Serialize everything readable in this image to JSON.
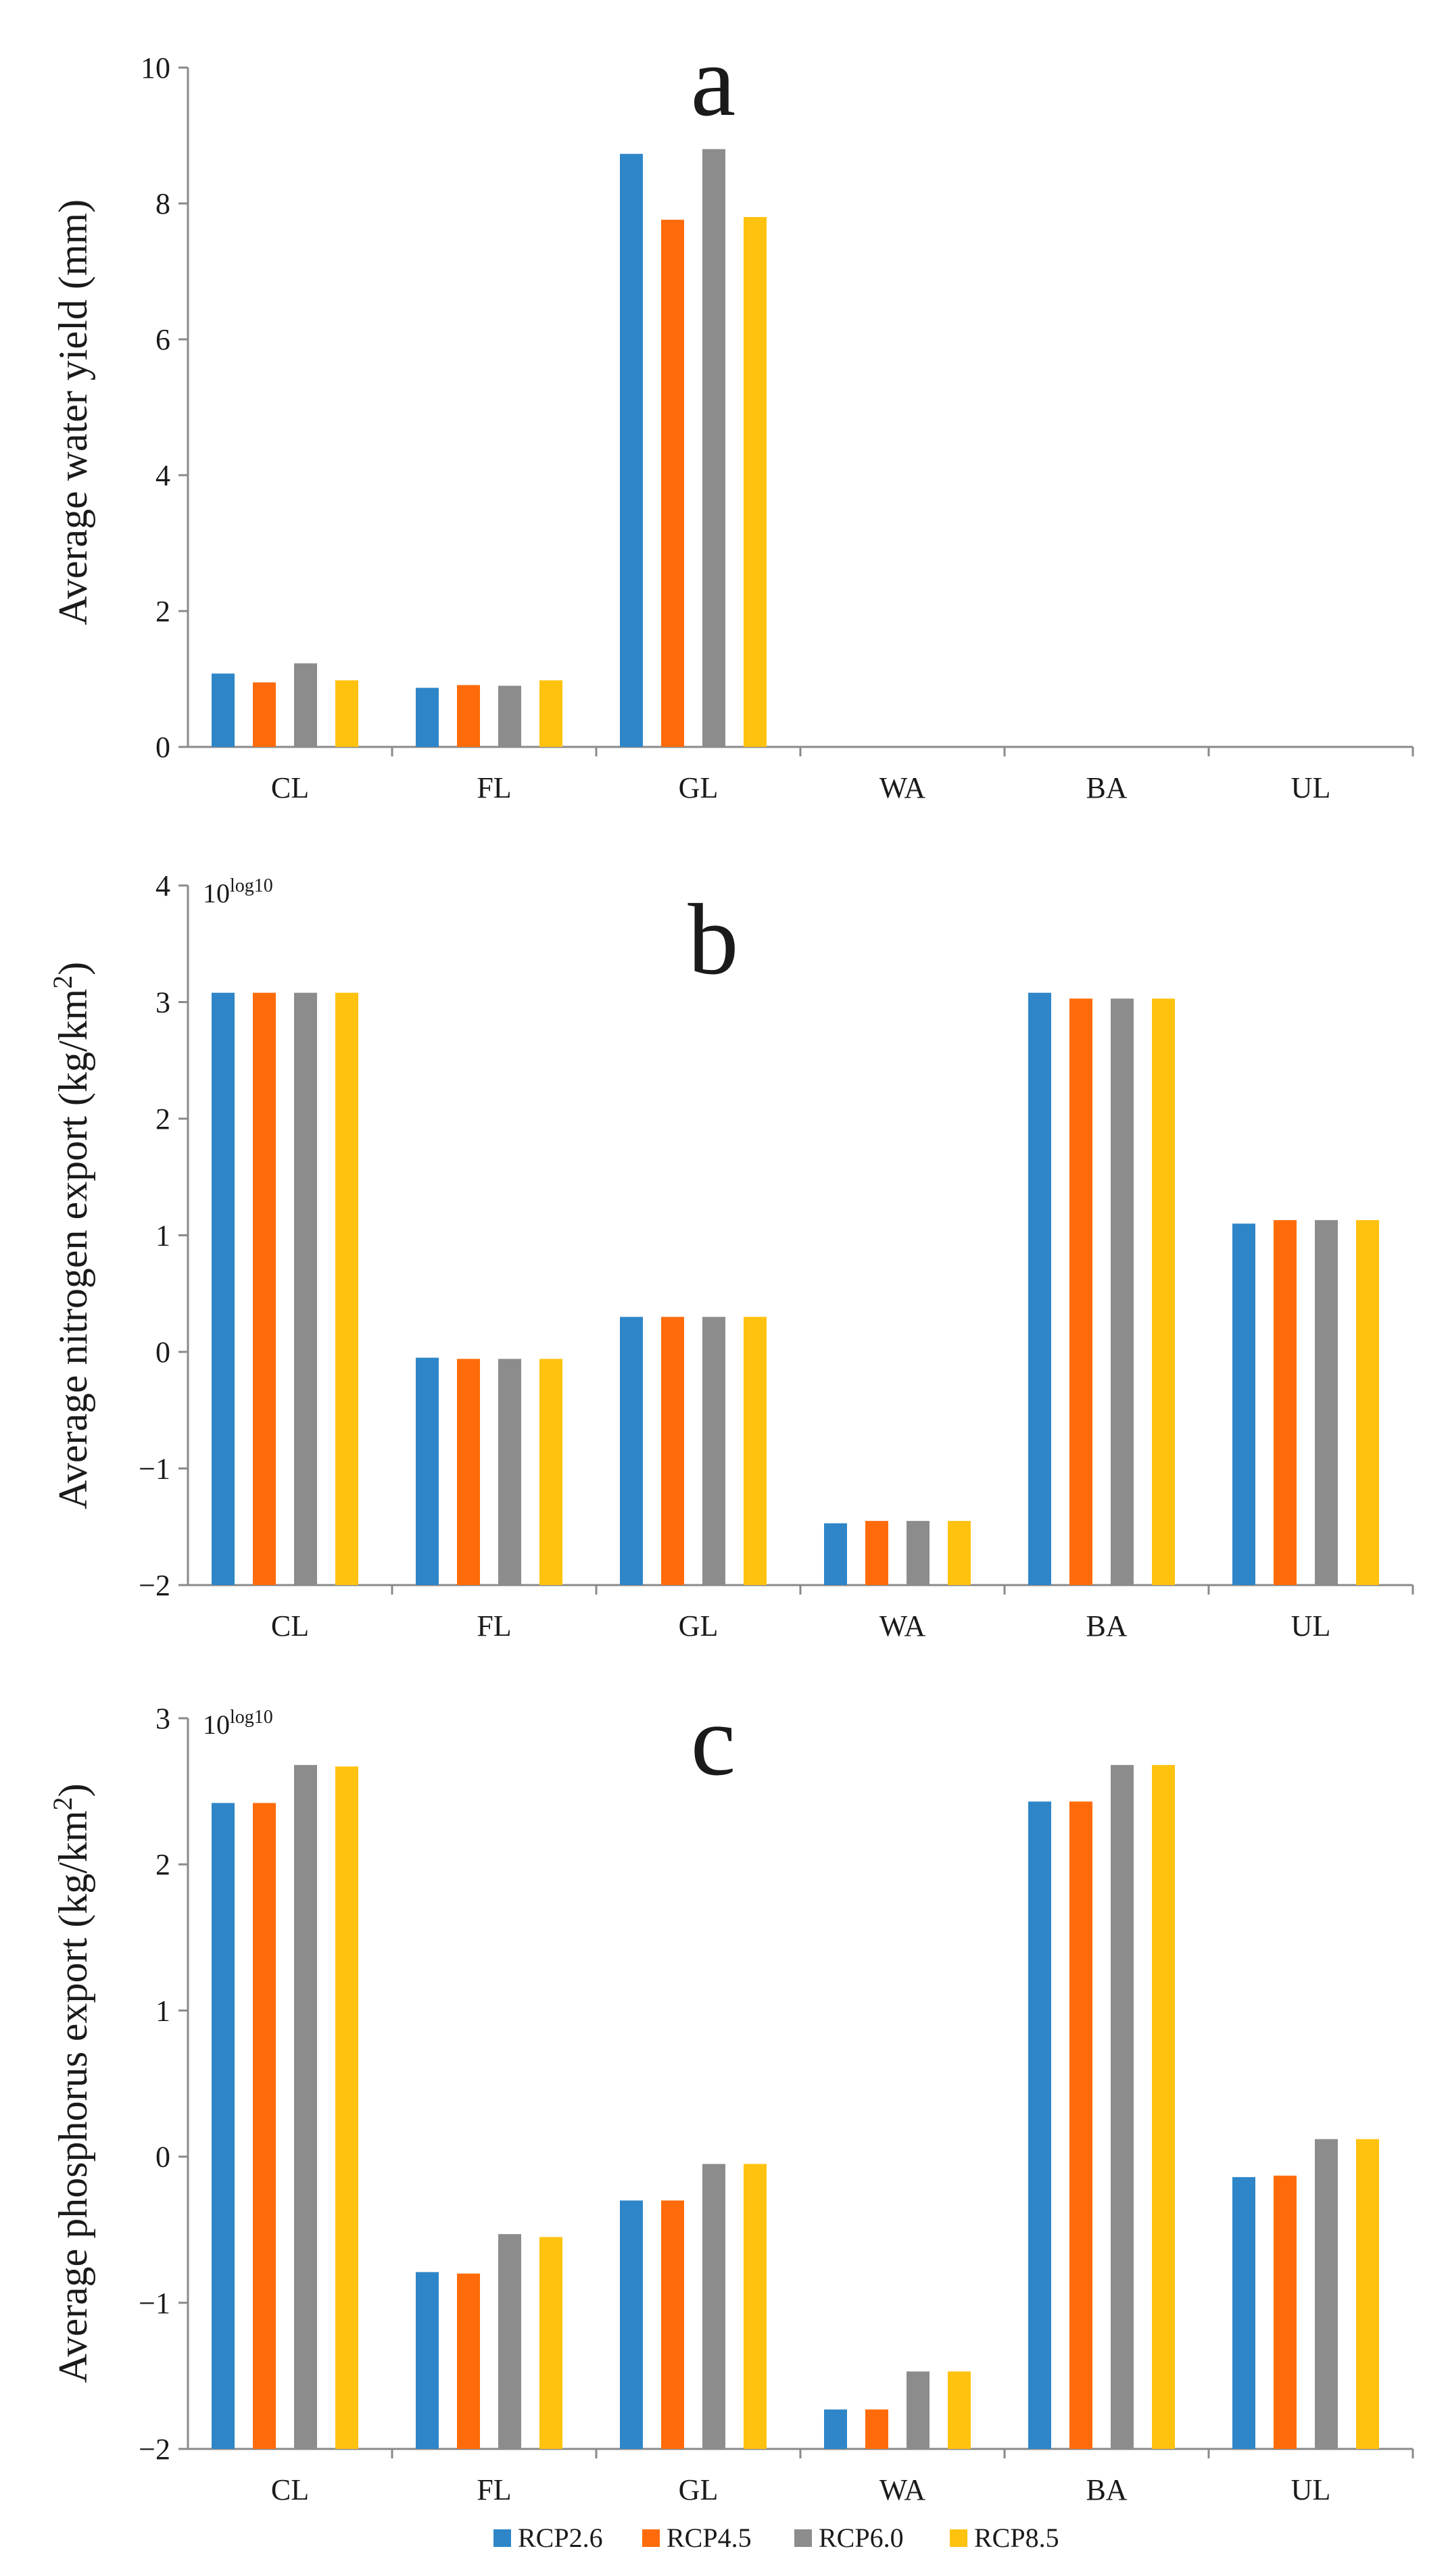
{
  "palette": [
    "#2E86C8",
    "#FF6B0A",
    "#8C8C8C",
    "#FFC20E"
  ],
  "legend": [
    "RCP2.6",
    "RCP4.5",
    "RCP6.0",
    "RCP8.5"
  ],
  "chart_data": [
    {
      "type": "bar",
      "panel_label": "a",
      "ylabel": "Average water yield (mm)",
      "ylim": [
        0,
        10
      ],
      "yticks": [
        0,
        2,
        4,
        6,
        8,
        10
      ],
      "scale_note": "",
      "categories": [
        "CL",
        "FL",
        "GL",
        "WA",
        "BA",
        "UL"
      ],
      "series": [
        {
          "name": "RCP2.6",
          "values": [
            1.08,
            0.87,
            8.73,
            0,
            0,
            0
          ]
        },
        {
          "name": "RCP4.5",
          "values": [
            0.95,
            0.91,
            7.76,
            0,
            0,
            0
          ]
        },
        {
          "name": "RCP6.0",
          "values": [
            1.23,
            0.9,
            8.8,
            0,
            0,
            0
          ]
        },
        {
          "name": "RCP8.5",
          "values": [
            0.98,
            0.98,
            7.8,
            0,
            0,
            0
          ]
        }
      ]
    },
    {
      "type": "bar",
      "panel_label": "b",
      "ylabel": "Average nitrogen export (kg/km²)",
      "ylim": [
        -2,
        4
      ],
      "yticks": [
        -2,
        -1,
        0,
        1,
        2,
        3,
        4
      ],
      "scale_note": "10",
      "scale_note_sup": "log10",
      "categories": [
        "CL",
        "FL",
        "GL",
        "WA",
        "BA",
        "UL"
      ],
      "series": [
        {
          "name": "RCP2.6",
          "values": [
            3.08,
            -0.05,
            0.3,
            -1.47,
            3.08,
            1.1
          ]
        },
        {
          "name": "RCP4.5",
          "values": [
            3.08,
            -0.06,
            0.3,
            -1.45,
            3.03,
            1.13
          ]
        },
        {
          "name": "RCP6.0",
          "values": [
            3.08,
            -0.06,
            0.3,
            -1.45,
            3.03,
            1.13
          ]
        },
        {
          "name": "RCP8.5",
          "values": [
            3.08,
            -0.06,
            0.3,
            -1.45,
            3.03,
            1.13
          ]
        }
      ]
    },
    {
      "type": "bar",
      "panel_label": "c",
      "ylabel": "Average phosphorus export (kg/km²)",
      "ylim": [
        -2,
        3
      ],
      "yticks": [
        -2,
        -1,
        0,
        1,
        2,
        3
      ],
      "scale_note": "10",
      "scale_note_sup": "log10",
      "categories": [
        "CL",
        "FL",
        "GL",
        "WA",
        "BA",
        "UL"
      ],
      "series": [
        {
          "name": "RCP2.6",
          "values": [
            2.42,
            -0.79,
            -0.3,
            -1.73,
            2.43,
            -0.14
          ]
        },
        {
          "name": "RCP4.5",
          "values": [
            2.42,
            -0.8,
            -0.3,
            -1.73,
            2.43,
            -0.13
          ]
        },
        {
          "name": "RCP6.0",
          "values": [
            2.68,
            -0.53,
            -0.05,
            -1.47,
            2.68,
            0.12
          ]
        },
        {
          "name": "RCP8.5",
          "values": [
            2.67,
            -0.55,
            -0.05,
            -1.47,
            2.68,
            0.12
          ]
        }
      ]
    }
  ]
}
